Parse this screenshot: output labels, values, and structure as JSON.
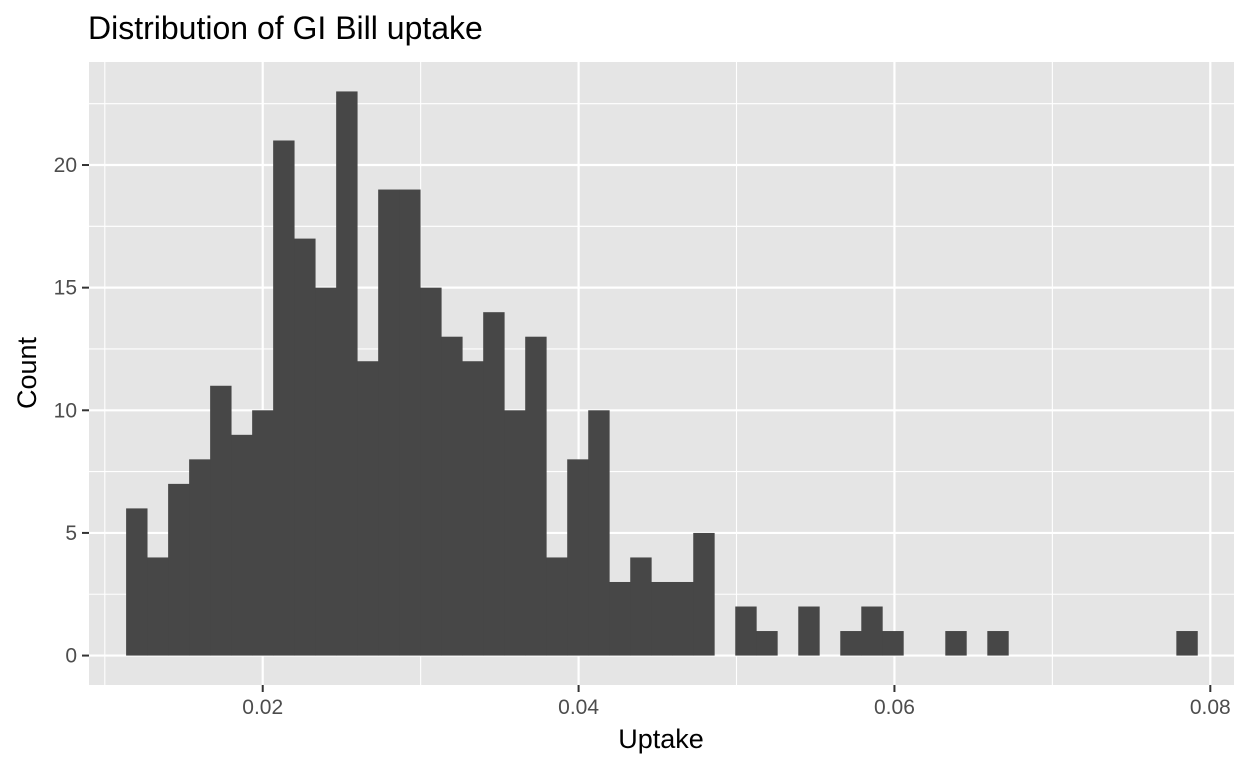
{
  "chart_data": {
    "type": "bar",
    "title": "Distribution of GI Bill uptake",
    "xlabel": "Uptake",
    "ylabel": "Count",
    "xlim": [
      0.009,
      0.0815
    ],
    "ylim": [
      -1.2,
      24.2
    ],
    "x_ticks": [
      0.02,
      0.04,
      0.06,
      0.08
    ],
    "x_tick_labels": [
      "0.02",
      "0.04",
      "0.06",
      "0.08"
    ],
    "y_ticks": [
      0,
      5,
      10,
      15,
      20
    ],
    "y_tick_labels": [
      "0",
      "5",
      "10",
      "15",
      "20"
    ],
    "x_minor_ticks": [
      0.01,
      0.03,
      0.05,
      0.07
    ],
    "y_minor_ticks": [
      2.5,
      7.5,
      12.5,
      17.5,
      22.5
    ],
    "grid": true,
    "legend": "none",
    "bin_width": 0.00133,
    "bins_start": 0.01135,
    "counts": [
      6,
      4,
      7,
      8,
      11,
      9,
      10,
      21,
      17,
      15,
      23,
      12,
      19,
      19,
      15,
      13,
      12,
      14,
      10,
      13,
      4,
      8,
      10,
      3,
      4,
      3,
      3,
      5,
      0,
      2,
      1,
      0,
      2,
      0,
      1,
      2,
      1,
      0,
      0,
      1,
      0,
      1,
      0,
      0,
      0,
      0,
      0,
      0,
      0,
      0,
      1
    ],
    "colors": {
      "bar": "#474747",
      "panel": "#e5e5e5",
      "grid": "#ffffff"
    }
  }
}
